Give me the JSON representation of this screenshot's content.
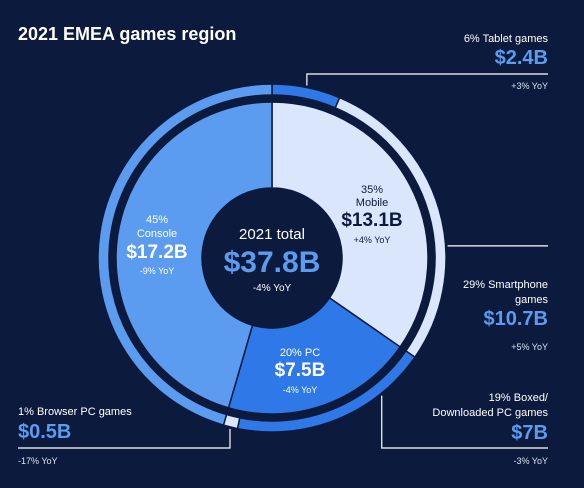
{
  "title": "2021 EMEA games region",
  "colors": {
    "background": "#0c1b3d",
    "console": "#5b9bf0",
    "mobile": "#d9e6fb",
    "pc": "#2f78e8",
    "accent_value": "#5b9bf0"
  },
  "total": {
    "label": "2021 total",
    "value": "$37.8B",
    "yoy": "-4% YoY"
  },
  "segments": {
    "console": {
      "pct": "45%",
      "name": "Console",
      "value": "$17.2B",
      "yoy": "-9% YoY"
    },
    "mobile": {
      "pct": "35%",
      "name": "Mobile",
      "value": "$13.1B",
      "yoy": "+4% YoY"
    },
    "pc": {
      "pct": "20% PC",
      "value": "$7.5B",
      "yoy": "-4% YoY"
    }
  },
  "callouts": {
    "tablet": {
      "label": "6% Tablet games",
      "value": "$2.4B",
      "yoy": "+3% YoY"
    },
    "smartphone": {
      "label1": "29% Smartphone",
      "label2": "games",
      "value": "$10.7B",
      "yoy": "+5% YoY"
    },
    "boxed": {
      "label1": "19% Boxed/",
      "label2": "Downloaded PC games",
      "value": "$7B",
      "yoy": "-3% YoY"
    },
    "browser": {
      "label": "1% Browser PC games",
      "value": "$0.5B",
      "yoy": "-17% YoY"
    }
  },
  "chart_data": {
    "type": "pie",
    "title": "2021 EMEA games region",
    "total": 37.8,
    "unit": "$B",
    "inner_ring": [
      {
        "name": "Mobile",
        "value": 13.1,
        "percent": 35,
        "yoy_percent": 4,
        "color": "#d9e6fb"
      },
      {
        "name": "PC",
        "value": 7.5,
        "percent": 20,
        "yoy_percent": -4,
        "color": "#2f78e8"
      },
      {
        "name": "Console",
        "value": 17.2,
        "percent": 45,
        "yoy_percent": -9,
        "color": "#5b9bf0"
      }
    ],
    "outer_ring": [
      {
        "name": "Tablet games",
        "value": 2.4,
        "percent": 6,
        "yoy_percent": 3,
        "color": "#2f78e8"
      },
      {
        "name": "Smartphone games",
        "value": 10.7,
        "percent": 29,
        "yoy_percent": 5,
        "color": "#d9e6fb"
      },
      {
        "name": "Boxed/Downloaded PC games",
        "value": 7,
        "percent": 19,
        "yoy_percent": -3,
        "color": "#2f78e8"
      },
      {
        "name": "Browser PC games",
        "value": 0.5,
        "percent": 1,
        "yoy_percent": -17,
        "color": "#d9e6fb"
      },
      {
        "name": "Console",
        "value": 17.2,
        "percent": 45,
        "yoy_percent": -9,
        "color": "#5b9bf0"
      }
    ]
  }
}
